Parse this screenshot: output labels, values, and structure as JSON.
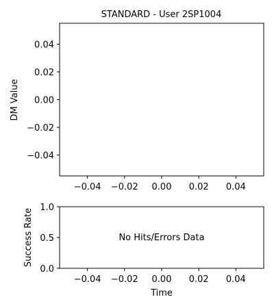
{
  "chart_data": [
    {
      "type": "line",
      "title": "STANDARD - User 2SP1004",
      "xlabel": "",
      "ylabel": "DM Value",
      "xlim": [
        -0.055,
        0.055
      ],
      "ylim": [
        -0.055,
        0.055
      ],
      "x_ticks": [
        -0.04,
        -0.02,
        0.0,
        0.02,
        0.04
      ],
      "y_ticks": [
        -0.04,
        -0.02,
        0.0,
        0.02,
        0.04
      ],
      "x_tick_labels": [
        "−0.04",
        "−0.02",
        "0.00",
        "0.02",
        "0.04"
      ],
      "y_tick_labels": [
        "−0.04",
        "−0.02",
        "0.00",
        "0.02",
        "0.04"
      ],
      "series": [],
      "grid": false
    },
    {
      "type": "line",
      "title": "",
      "xlabel": "Time",
      "ylabel": "Success Rate",
      "xlim": [
        -0.055,
        0.055
      ],
      "ylim": [
        0.0,
        1.0
      ],
      "x_ticks": [
        -0.04,
        -0.02,
        0.0,
        0.02,
        0.04
      ],
      "y_ticks": [
        0.0,
        0.5,
        1.0
      ],
      "x_tick_labels": [
        "−0.04",
        "−0.02",
        "0.00",
        "0.02",
        "0.04"
      ],
      "y_tick_labels": [
        "0.0",
        "0.5",
        "1.0"
      ],
      "annotation": "No Hits/Errors Data",
      "series": [],
      "grid": false
    }
  ]
}
